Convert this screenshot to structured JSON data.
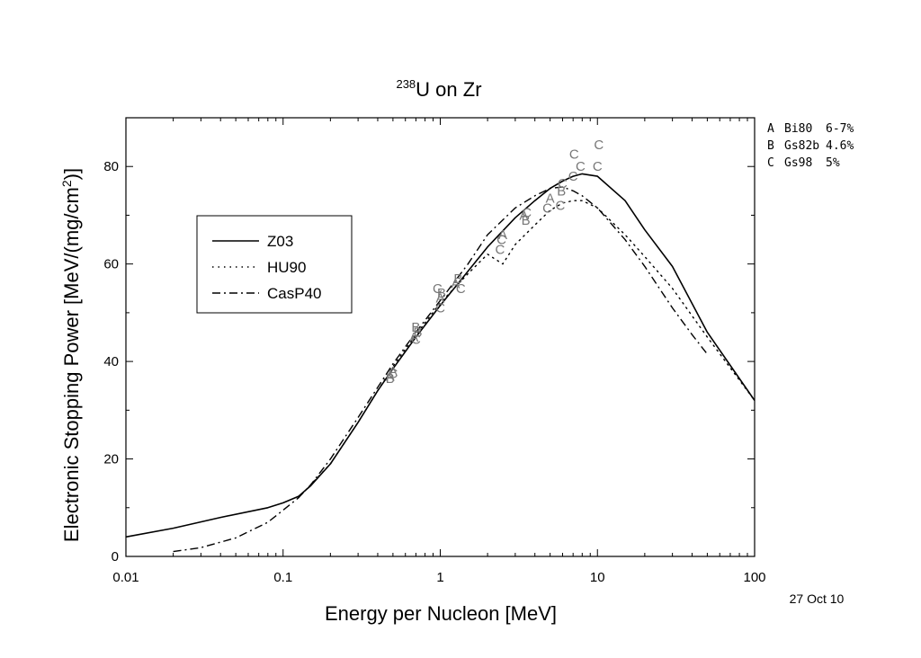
{
  "chart_data": {
    "type": "line",
    "title": {
      "isotope_mass": "238",
      "text": "U on Zr"
    },
    "xlabel": "Energy per Nucleon [MeV]",
    "ylabel_main": "Electronic Stopping Power [MeV/(mg/cm",
    "ylabel_sup": "2",
    "ylabel_end": ")]",
    "x_scale": "log",
    "xlim": [
      0.01,
      100
    ],
    "ylim": [
      0,
      90
    ],
    "x_ticks": [
      0.01,
      0.1,
      1,
      10,
      100
    ],
    "x_tick_labels": [
      "0.01",
      "0.1",
      "1",
      "10",
      "100"
    ],
    "y_ticks": [
      0,
      20,
      40,
      60,
      80
    ],
    "y_tick_labels": [
      "0",
      "20",
      "40",
      "60",
      "80"
    ],
    "grid": false,
    "legend_position": "center-left",
    "series": [
      {
        "name": "Z03",
        "style": "solid",
        "x": [
          0.01,
          0.02,
          0.04,
          0.08,
          0.1,
          0.125,
          0.15,
          0.2,
          0.3,
          0.4,
          0.5,
          0.7,
          1,
          1.5,
          2,
          3,
          4,
          5,
          6,
          7,
          8,
          10,
          15,
          20,
          30,
          50,
          100
        ],
        "y": [
          4,
          5.8,
          8,
          10,
          11,
          12.3,
          14.5,
          19,
          27.5,
          34,
          38.5,
          45,
          51.5,
          58.5,
          63.5,
          69.5,
          73,
          75.5,
          77,
          78,
          78.5,
          78,
          73,
          67,
          59.5,
          46,
          32
        ]
      },
      {
        "name": "HU90",
        "style": "dotted",
        "x": [
          0.125,
          0.2,
          0.3,
          0.5,
          0.7,
          1,
          1.5,
          2,
          2.5,
          3,
          4,
          5,
          6,
          7,
          8,
          10,
          15,
          20,
          30,
          50,
          100
        ],
        "y": [
          12,
          19,
          27.5,
          39,
          45.5,
          52,
          58,
          62,
          60,
          64,
          68,
          71,
          72.5,
          73,
          73,
          71.5,
          66,
          61.5,
          55,
          45,
          32
        ]
      },
      {
        "name": "CasP40",
        "style": "dashdot",
        "x": [
          0.02,
          0.03,
          0.05,
          0.08,
          0.1,
          0.125,
          0.15,
          0.2,
          0.3,
          0.5,
          0.7,
          1,
          1.5,
          2,
          3,
          4,
          5,
          6,
          7,
          8,
          10,
          15,
          20,
          30,
          40,
          50
        ],
        "y": [
          1,
          1.8,
          3.8,
          7,
          9.5,
          12,
          14.7,
          20,
          28.5,
          39.5,
          46,
          52.5,
          60,
          66,
          71.5,
          74,
          75.5,
          75.8,
          75,
          74,
          71.5,
          65,
          59.5,
          51,
          45.5,
          41.5
        ]
      }
    ],
    "data_points": [
      {
        "label": "A",
        "x": 0.48,
        "y": 37
      },
      {
        "label": "A",
        "x": 0.5,
        "y": 38
      },
      {
        "label": "B",
        "x": 0.48,
        "y": 36.5
      },
      {
        "label": "C",
        "x": 0.5,
        "y": 37.5
      },
      {
        "label": "A",
        "x": 0.68,
        "y": 45
      },
      {
        "label": "B",
        "x": 0.7,
        "y": 47
      },
      {
        "label": "C",
        "x": 0.7,
        "y": 44.5
      },
      {
        "label": "B",
        "x": 0.72,
        "y": 46
      },
      {
        "label": "C",
        "x": 0.96,
        "y": 55
      },
      {
        "label": "A",
        "x": 1.0,
        "y": 53
      },
      {
        "label": "C",
        "x": 1.0,
        "y": 51
      },
      {
        "label": "B",
        "x": 1.02,
        "y": 54
      },
      {
        "label": "A",
        "x": 1.25,
        "y": 56
      },
      {
        "label": "B",
        "x": 1.3,
        "y": 57
      },
      {
        "label": "C",
        "x": 1.35,
        "y": 55
      },
      {
        "label": "C",
        "x": 2.4,
        "y": 63
      },
      {
        "label": "C",
        "x": 2.45,
        "y": 65
      },
      {
        "label": "A",
        "x": 2.5,
        "y": 66
      },
      {
        "label": "A",
        "x": 3.4,
        "y": 70
      },
      {
        "label": "B",
        "x": 3.5,
        "y": 69
      },
      {
        "label": "C",
        "x": 3.55,
        "y": 70.5
      },
      {
        "label": "C",
        "x": 4.8,
        "y": 71.5
      },
      {
        "label": "A",
        "x": 5.0,
        "y": 73.5
      },
      {
        "label": "C",
        "x": 5.8,
        "y": 72
      },
      {
        "label": "B",
        "x": 5.9,
        "y": 75
      },
      {
        "label": "C",
        "x": 6.0,
        "y": 76.5
      },
      {
        "label": "C",
        "x": 7.0,
        "y": 78
      },
      {
        "label": "C",
        "x": 7.1,
        "y": 82.5
      },
      {
        "label": "C",
        "x": 7.8,
        "y": 80
      },
      {
        "label": "C",
        "x": 10.0,
        "y": 80
      },
      {
        "label": "C",
        "x": 10.2,
        "y": 84.5
      }
    ],
    "references": [
      {
        "key": "A",
        "name": "Bi80",
        "error": "6-7%"
      },
      {
        "key": "B",
        "name": "Gs82b",
        "error": "4.6%"
      },
      {
        "key": "C",
        "name": "Gs98",
        "error": "5%"
      }
    ],
    "date": "27 Oct 10"
  }
}
